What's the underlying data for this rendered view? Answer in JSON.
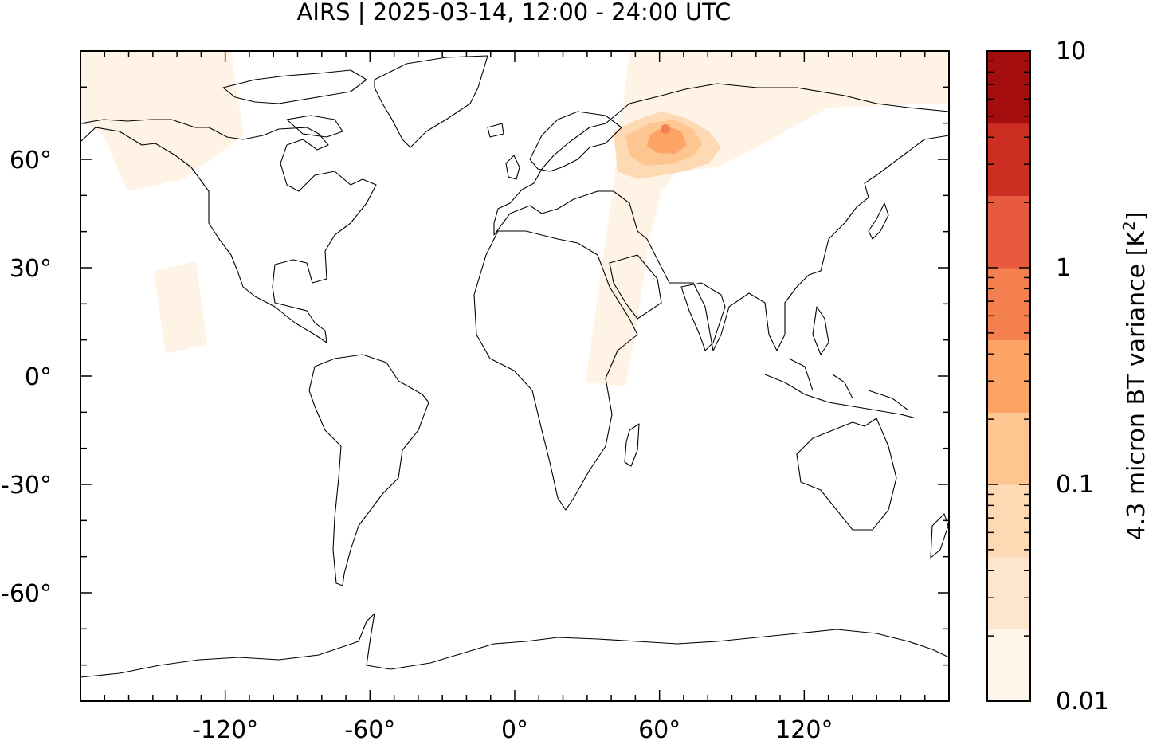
{
  "title": "AIRS | 2025-03-14, 12:00 - 24:00 UTC",
  "map": {
    "projection": "equirectangular",
    "lon_range": [
      -180,
      180
    ],
    "lat_range": [
      -90,
      90
    ],
    "x_ticks": [
      {
        "value": -120,
        "label": "-120°"
      },
      {
        "value": -60,
        "label": "-60°"
      },
      {
        "value": 0,
        "label": "0°"
      },
      {
        "value": 60,
        "label": "60°"
      },
      {
        "value": 120,
        "label": "120°"
      }
    ],
    "y_ticks": [
      {
        "value": 60,
        "label": "60°"
      },
      {
        "value": 30,
        "label": "30°"
      },
      {
        "value": 0,
        "label": "0°"
      },
      {
        "value": -30,
        "label": "-30°"
      },
      {
        "value": -60,
        "label": "-60°"
      }
    ],
    "coastline_color": "#000000",
    "background_color": "#ffffff"
  },
  "colorbar": {
    "label": "4.3 micron BT variance [K",
    "label_superscript": "2",
    "label_close": "]",
    "scale": "log",
    "range": [
      0.01,
      10
    ],
    "tick_labels": [
      {
        "value": 10,
        "label": "10"
      },
      {
        "value": 1,
        "label": "1"
      },
      {
        "value": 0.1,
        "label": "0.1"
      },
      {
        "value": 0.01,
        "label": "0.01"
      }
    ],
    "colors": [
      "#fff5eb",
      "#fee6ce",
      "#fdd9b4",
      "#fdc590",
      "#fca466",
      "#f4804f",
      "#e85a3f",
      "#cc2e22",
      "#a40e0e"
    ]
  }
}
